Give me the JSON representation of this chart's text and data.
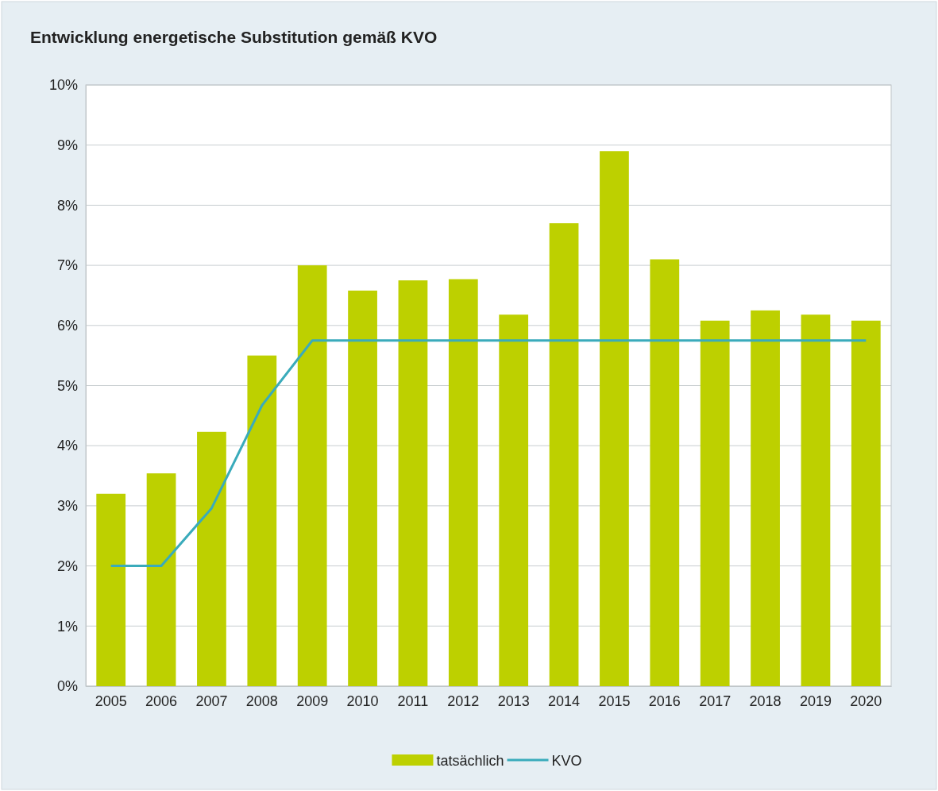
{
  "chart_data": {
    "type": "bar",
    "title": "Entwicklung energetische Substitution gemäß KVO",
    "categories": [
      "2005",
      "2006",
      "2007",
      "2008",
      "2009",
      "2010",
      "2011",
      "2012",
      "2013",
      "2014",
      "2015",
      "2016",
      "2017",
      "2018",
      "2019",
      "2020"
    ],
    "series": [
      {
        "name": "tatsächlich",
        "color": "#bdd000",
        "values": [
          3.2,
          3.54,
          4.23,
          5.5,
          7.0,
          6.58,
          6.75,
          6.77,
          6.18,
          7.7,
          8.9,
          7.1,
          6.08,
          6.25,
          6.18,
          6.08
        ]
      },
      {
        "name": "KVO",
        "type": "line",
        "color": "#3aabbb",
        "values": [
          2.0,
          2.0,
          2.96,
          4.67,
          5.75,
          5.75,
          5.75,
          5.75,
          5.75,
          5.75,
          5.75,
          5.75,
          5.75,
          5.75,
          5.75,
          5.75
        ]
      }
    ],
    "ylim": [
      0,
      10
    ],
    "yticks": [
      {
        "value": 0,
        "label": "0%"
      },
      {
        "value": 1,
        "label": "1%"
      },
      {
        "value": 2,
        "label": "2%"
      },
      {
        "value": 3,
        "label": "3%"
      },
      {
        "value": 4,
        "label": "4%"
      },
      {
        "value": 5,
        "label": "5%"
      },
      {
        "value": 6,
        "label": "6%"
      },
      {
        "value": 7,
        "label": "7%"
      },
      {
        "value": 8,
        "label": "8%"
      },
      {
        "value": 9,
        "label": "9%"
      },
      {
        "value": 10,
        "label": "10%"
      }
    ],
    "grid": "y",
    "legend": "bottom",
    "marker": "none",
    "line_style": "solid"
  }
}
